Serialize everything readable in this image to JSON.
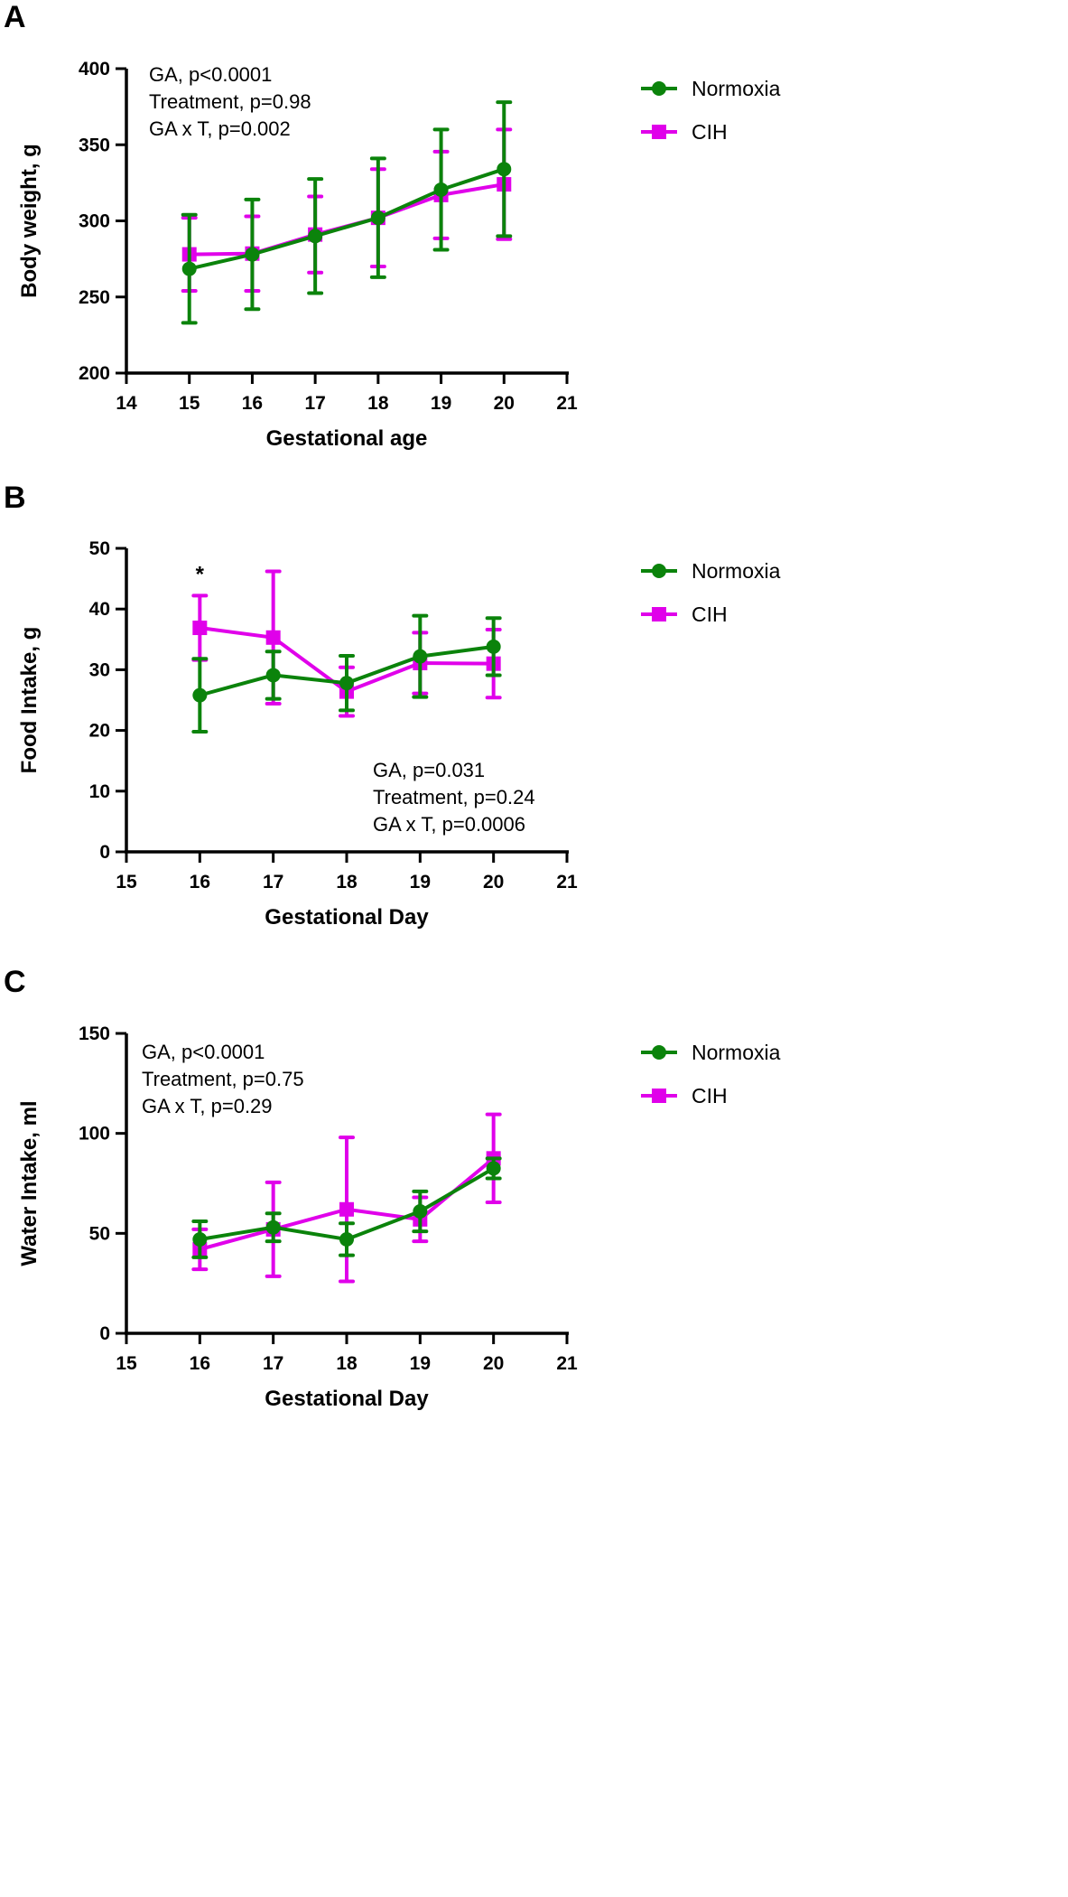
{
  "colors": {
    "normoxia": "#0b830b",
    "cih": "#e000ea"
  },
  "chart_data": [
    {
      "type": "line",
      "panel": "A",
      "title": "",
      "xlabel": "Gestational age",
      "ylabel": "Body weight, g",
      "xlim": [
        14,
        21
      ],
      "ylim": [
        200,
        400
      ],
      "xticks": [
        "14",
        "15",
        "16",
        "17",
        "18",
        "19",
        "20",
        "21"
      ],
      "yticks": [
        "200",
        "250",
        "300",
        "350",
        "400"
      ],
      "legend": [
        "Normoxia",
        "CIH"
      ],
      "legend_position": "right-top",
      "stats": [
        "GA, p<0.0001",
        "Treatment, p=0.98",
        "GA x T, p=0.002"
      ],
      "annotations": [],
      "x": [
        15,
        16,
        17,
        18,
        19,
        20
      ],
      "series": [
        {
          "name": "Normoxia",
          "marker": "circle",
          "values": [
            268.5,
            278,
            290,
            302,
            320.5,
            334
          ],
          "error": [
            35.5,
            36,
            37.5,
            39,
            39.5,
            44
          ]
        },
        {
          "name": "CIH",
          "marker": "square",
          "values": [
            278,
            278.5,
            291,
            302,
            317,
            324
          ],
          "error": [
            24,
            24.5,
            25,
            32,
            28.5,
            36
          ]
        }
      ]
    },
    {
      "type": "line",
      "panel": "B",
      "title": "",
      "xlabel": "Gestational Day",
      "ylabel": "Food Intake, g",
      "xlim": [
        15,
        21
      ],
      "ylim": [
        0,
        50
      ],
      "xticks": [
        "15",
        "16",
        "17",
        "18",
        "19",
        "20",
        "21"
      ],
      "yticks": [
        "0",
        "10",
        "20",
        "30",
        "40",
        "50"
      ],
      "legend": [
        "Normoxia",
        "CIH"
      ],
      "legend_position": "right-top",
      "stats": [
        "GA, p=0.031",
        "Treatment, p=0.24",
        "GA x T, p=0.0006"
      ],
      "annotations": [
        {
          "text": "*",
          "x": 16
        }
      ],
      "x": [
        16,
        17,
        18,
        19,
        20
      ],
      "series": [
        {
          "name": "Normoxia",
          "marker": "circle",
          "values": [
            25.8,
            29.1,
            27.8,
            32.2,
            33.8
          ],
          "error": [
            6,
            3.9,
            4.5,
            6.7,
            4.7
          ]
        },
        {
          "name": "CIH",
          "marker": "square",
          "values": [
            36.9,
            35.3,
            26.4,
            31.1,
            31.0
          ],
          "error": [
            5.3,
            10.9,
            4,
            5,
            5.6
          ]
        }
      ]
    },
    {
      "type": "line",
      "panel": "C",
      "title": "",
      "xlabel": "Gestational Day",
      "ylabel": "Water Intake, ml",
      "xlim": [
        15,
        21
      ],
      "ylim": [
        0,
        150
      ],
      "xticks": [
        "15",
        "16",
        "17",
        "18",
        "19",
        "20",
        "21"
      ],
      "yticks": [
        "0",
        "50",
        "100",
        "150"
      ],
      "legend": [
        "Normoxia",
        "CIH"
      ],
      "legend_position": "right-top",
      "stats": [
        "GA, p<0.0001",
        "Treatment, p=0.75",
        "GA x T, p=0.29"
      ],
      "annotations": [],
      "x": [
        16,
        17,
        18,
        19,
        20
      ],
      "series": [
        {
          "name": "Normoxia",
          "marker": "circle",
          "values": [
            47,
            53,
            47,
            61,
            82.5
          ],
          "error": [
            9,
            7,
            8,
            10,
            5
          ]
        },
        {
          "name": "CIH",
          "marker": "square",
          "values": [
            42,
            52,
            62,
            57,
            87.5
          ],
          "error": [
            10,
            23.5,
            36,
            11,
            22
          ]
        }
      ]
    }
  ]
}
